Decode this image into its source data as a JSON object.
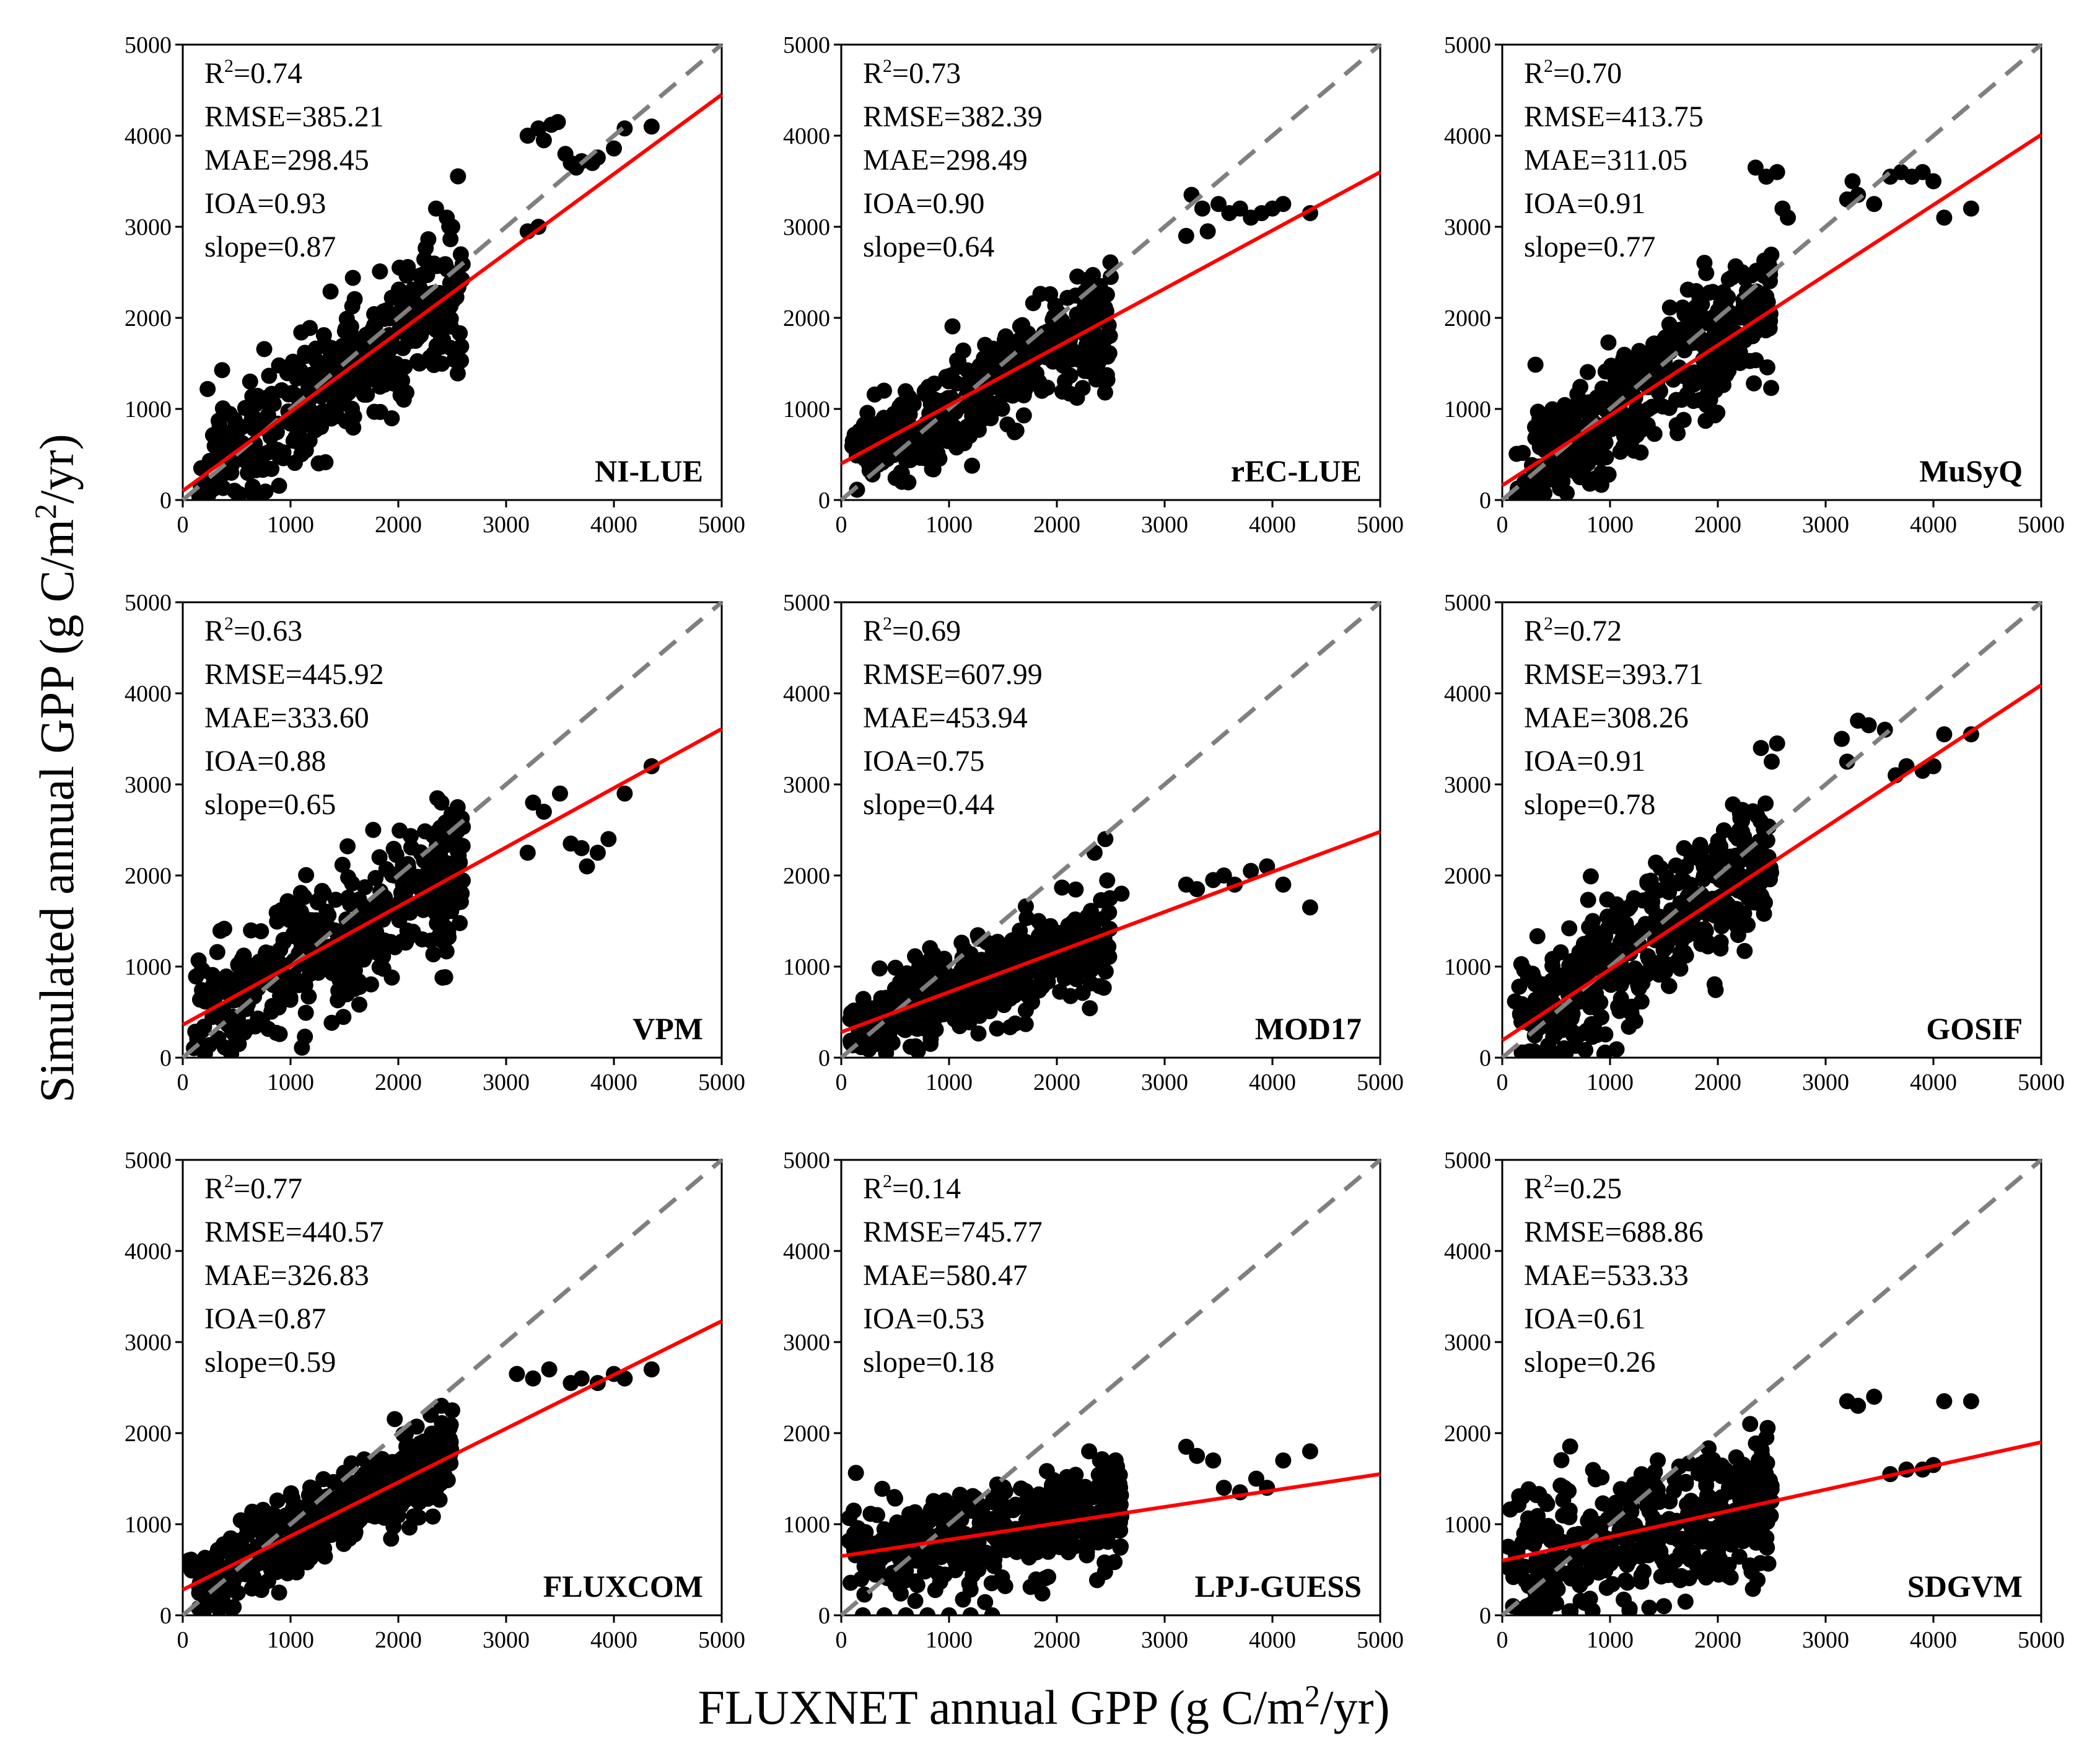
{
  "figure": {
    "ylabel": "Simulated annual GPP (g C/m",
    "ylabel_sup": "2",
    "ylabel_tail": "/yr)",
    "xlabel": "FLUXNET annual GPP (g C/m",
    "xlabel_sup": "2",
    "xlabel_tail": "/yr)"
  },
  "colors": {
    "points": "#000000",
    "fit": "#ff0000",
    "identity": "#7f7f7f",
    "frame": "#000000"
  },
  "chart_data": [
    {
      "type": "scatter",
      "model": "NI-LUE",
      "r2_label": "R",
      "r2_sup": "2",
      "r2_value": "=0.74",
      "rmse": "RMSE=385.21",
      "mae": "MAE=298.45",
      "ioa": "IOA=0.93",
      "slope_label": "slope=0.87",
      "fit": {
        "slope": 0.87,
        "intercept": 100
      },
      "xlim": [
        0,
        5000
      ],
      "ylim": [
        0,
        5000
      ],
      "ticks": [
        "0",
        "1000",
        "2000",
        "3000",
        "4000",
        "5000"
      ],
      "seed": 11,
      "sd": 330,
      "obs_range": [
        150,
        2600
      ],
      "high_points": [
        [
          3200,
          4000
        ],
        [
          3300,
          4080
        ],
        [
          3350,
          3950
        ],
        [
          3420,
          4120
        ],
        [
          3480,
          4150
        ],
        [
          3550,
          3800
        ],
        [
          3600,
          3700
        ],
        [
          3650,
          3650
        ],
        [
          3700,
          3720
        ],
        [
          3800,
          3700
        ],
        [
          3850,
          3760
        ],
        [
          4000,
          3860
        ],
        [
          4100,
          4080
        ],
        [
          4350,
          4100
        ],
        [
          3200,
          2950
        ],
        [
          3300,
          3000
        ],
        [
          2350,
          3200
        ],
        [
          2450,
          3100
        ],
        [
          2500,
          3000
        ]
      ]
    },
    {
      "type": "scatter",
      "model": "rEC-LUE",
      "r2_label": "R",
      "r2_sup": "2",
      "r2_value": "=0.73",
      "rmse": "RMSE=382.39",
      "mae": "MAE=298.49",
      "ioa": "IOA=0.90",
      "slope_label": "slope=0.64",
      "fit": {
        "slope": 0.64,
        "intercept": 400
      },
      "xlim": [
        0,
        5000
      ],
      "ylim": [
        0,
        5000
      ],
      "ticks": [
        "0",
        "1000",
        "2000",
        "3000",
        "4000",
        "5000"
      ],
      "seed": 23,
      "sd": 270,
      "obs_range": [
        100,
        2500
      ],
      "high_points": [
        [
          3200,
          2900
        ],
        [
          3250,
          3350
        ],
        [
          3350,
          3200
        ],
        [
          3400,
          2950
        ],
        [
          3500,
          3250
        ],
        [
          3600,
          3150
        ],
        [
          3700,
          3200
        ],
        [
          3800,
          3100
        ],
        [
          3900,
          3150
        ],
        [
          4000,
          3200
        ],
        [
          4100,
          3250
        ],
        [
          4350,
          3150
        ],
        [
          2300,
          2400
        ],
        [
          2400,
          2350
        ],
        [
          2500,
          2450
        ]
      ]
    },
    {
      "type": "scatter",
      "model": "MuSyQ",
      "r2_label": "R",
      "r2_sup": "2",
      "r2_value": "=0.70",
      "rmse": "RMSE=413.75",
      "mae": "MAE=311.05",
      "ioa": "IOA=0.91",
      "slope_label": "slope=0.77",
      "fit": {
        "slope": 0.77,
        "intercept": 160
      },
      "xlim": [
        0,
        5000
      ],
      "ylim": [
        0,
        5000
      ],
      "ticks": [
        "0",
        "1000",
        "2000",
        "3000",
        "4000",
        "5000"
      ],
      "seed": 37,
      "sd": 360,
      "obs_range": [
        100,
        2500
      ],
      "high_points": [
        [
          2350,
          3650
        ],
        [
          2450,
          3550
        ],
        [
          2550,
          3600
        ],
        [
          2600,
          3200
        ],
        [
          2650,
          3100
        ],
        [
          3200,
          3300
        ],
        [
          3250,
          3500
        ],
        [
          3300,
          3350
        ],
        [
          3450,
          3250
        ],
        [
          3600,
          3550
        ],
        [
          3700,
          3600
        ],
        [
          3800,
          3550
        ],
        [
          3900,
          3600
        ],
        [
          4000,
          3500
        ],
        [
          4100,
          3100
        ],
        [
          4350,
          3200
        ]
      ]
    },
    {
      "type": "scatter",
      "model": "VPM",
      "r2_label": "R",
      "r2_sup": "2",
      "r2_value": "=0.63",
      "rmse": "RMSE=445.92",
      "mae": "MAE=333.60",
      "ioa": "IOA=0.88",
      "slope_label": "slope=0.65",
      "fit": {
        "slope": 0.65,
        "intercept": 360
      },
      "xlim": [
        0,
        5000
      ],
      "ylim": [
        0,
        5000
      ],
      "ticks": [
        "0",
        "1000",
        "2000",
        "3000",
        "4000",
        "5000"
      ],
      "seed": 41,
      "sd": 370,
      "obs_range": [
        100,
        2600
      ],
      "high_points": [
        [
          2400,
          2800
        ],
        [
          2550,
          2750
        ],
        [
          3200,
          2250
        ],
        [
          3250,
          2800
        ],
        [
          3350,
          2700
        ],
        [
          3500,
          2900
        ],
        [
          3600,
          2350
        ],
        [
          3700,
          2300
        ],
        [
          3750,
          2100
        ],
        [
          3850,
          2250
        ],
        [
          3950,
          2400
        ],
        [
          4100,
          2900
        ],
        [
          4350,
          3200
        ]
      ]
    },
    {
      "type": "scatter",
      "model": "MOD17",
      "r2_label": "R",
      "r2_sup": "2",
      "r2_value": "=0.69",
      "rmse": "RMSE=607.99",
      "mae": "MAE=453.94",
      "ioa": "IOA=0.75",
      "slope_label": "slope=0.44",
      "fit": {
        "slope": 0.44,
        "intercept": 280
      },
      "xlim": [
        0,
        5000
      ],
      "ylim": [
        0,
        5000
      ],
      "ticks": [
        "0",
        "1000",
        "2000",
        "3000",
        "4000",
        "5000"
      ],
      "seed": 53,
      "sd": 250,
      "obs_range": [
        50,
        2500
      ],
      "high_points": [
        [
          2350,
          2250
        ],
        [
          2450,
          2400
        ],
        [
          2600,
          1800
        ],
        [
          3200,
          1900
        ],
        [
          3300,
          1850
        ],
        [
          3450,
          1950
        ],
        [
          3550,
          2000
        ],
        [
          3650,
          1900
        ],
        [
          3800,
          2050
        ],
        [
          3950,
          2100
        ],
        [
          4100,
          1900
        ],
        [
          4350,
          1650
        ]
      ]
    },
    {
      "type": "scatter",
      "model": "GOSIF",
      "r2_label": "R",
      "r2_sup": "2",
      "r2_value": "=0.72",
      "rmse": "RMSE=393.71",
      "mae": "MAE=308.26",
      "ioa": "IOA=0.91",
      "slope_label": "slope=0.78",
      "fit": {
        "slope": 0.78,
        "intercept": 190
      },
      "xlim": [
        0,
        5000
      ],
      "ylim": [
        0,
        5000
      ],
      "ticks": [
        "0",
        "1000",
        "2000",
        "3000",
        "4000",
        "5000"
      ],
      "seed": 67,
      "sd": 340,
      "obs_range": [
        100,
        2500
      ],
      "high_points": [
        [
          2400,
          3400
        ],
        [
          2500,
          3250
        ],
        [
          2550,
          3450
        ],
        [
          3150,
          3500
        ],
        [
          3200,
          3250
        ],
        [
          3300,
          3700
        ],
        [
          3400,
          3650
        ],
        [
          3550,
          3600
        ],
        [
          3650,
          3100
        ],
        [
          3750,
          3200
        ],
        [
          3900,
          3150
        ],
        [
          4000,
          3200
        ],
        [
          4100,
          3550
        ],
        [
          4350,
          3550
        ]
      ]
    },
    {
      "type": "scatter",
      "model": "FLUXCOM",
      "r2_label": "R",
      "r2_sup": "2",
      "r2_value": "=0.77",
      "rmse": "RMSE=440.57",
      "mae": "MAE=326.83",
      "ioa": "IOA=0.87",
      "slope_label": "slope=0.59",
      "fit": {
        "slope": 0.59,
        "intercept": 280
      },
      "xlim": [
        0,
        5000
      ],
      "ylim": [
        0,
        5000
      ],
      "ticks": [
        "0",
        "1000",
        "2000",
        "3000",
        "4000",
        "5000"
      ],
      "seed": 79,
      "sd": 230,
      "obs_range": [
        50,
        2500
      ],
      "high_points": [
        [
          2300,
          2200
        ],
        [
          2400,
          2300
        ],
        [
          2500,
          2250
        ],
        [
          3100,
          2650
        ],
        [
          3250,
          2600
        ],
        [
          3400,
          2700
        ],
        [
          3600,
          2550
        ],
        [
          3700,
          2600
        ],
        [
          3850,
          2550
        ],
        [
          4000,
          2650
        ],
        [
          4100,
          2600
        ],
        [
          4350,
          2700
        ]
      ]
    },
    {
      "type": "scatter",
      "model": "LPJ-GUESS",
      "r2_label": "R",
      "r2_sup": "2",
      "r2_value": "=0.14",
      "rmse": "RMSE=745.77",
      "mae": "MAE=580.47",
      "ioa": "IOA=0.53",
      "slope_label": "slope=0.18",
      "fit": {
        "slope": 0.18,
        "intercept": 650
      },
      "xlim": [
        0,
        5000
      ],
      "ylim": [
        0,
        5000
      ],
      "ticks": [
        "0",
        "1000",
        "2000",
        "3000",
        "4000",
        "5000"
      ],
      "seed": 97,
      "sd": 290,
      "obs_range": [
        50,
        2600
      ],
      "high_points": [
        [
          2300,
          1800
        ],
        [
          2400,
          1700
        ],
        [
          3200,
          1850
        ],
        [
          3300,
          1750
        ],
        [
          3450,
          1700
        ],
        [
          3550,
          1400
        ],
        [
          3700,
          1350
        ],
        [
          3850,
          1500
        ],
        [
          3950,
          1400
        ],
        [
          4100,
          1700
        ],
        [
          4350,
          1800
        ],
        [
          200,
          0
        ],
        [
          400,
          0
        ],
        [
          600,
          0
        ],
        [
          800,
          0
        ],
        [
          1000,
          0
        ],
        [
          1200,
          0
        ],
        [
          1400,
          0
        ]
      ]
    },
    {
      "type": "scatter",
      "model": "SDGVM",
      "r2_label": "R",
      "r2_sup": "2",
      "r2_value": "=0.25",
      "rmse": "RMSE=688.86",
      "mae": "MAE=533.33",
      "ioa": "IOA=0.61",
      "slope_label": "slope=0.26",
      "fit": {
        "slope": 0.26,
        "intercept": 600
      },
      "xlim": [
        0,
        5000
      ],
      "ylim": [
        0,
        5000
      ],
      "ticks": [
        "0",
        "1000",
        "2000",
        "3000",
        "4000",
        "5000"
      ],
      "seed": 113,
      "sd": 380,
      "obs_range": [
        50,
        2500
      ],
      "high_points": [
        [
          2300,
          2100
        ],
        [
          2450,
          1950
        ],
        [
          3200,
          2350
        ],
        [
          3300,
          2300
        ],
        [
          3450,
          2400
        ],
        [
          3600,
          1550
        ],
        [
          3750,
          1600
        ],
        [
          3900,
          1600
        ],
        [
          4000,
          1650
        ],
        [
          4100,
          2350
        ],
        [
          4350,
          2350
        ],
        [
          100,
          100
        ],
        [
          300,
          50
        ],
        [
          1500,
          100
        ],
        [
          1700,
          150
        ]
      ]
    }
  ]
}
